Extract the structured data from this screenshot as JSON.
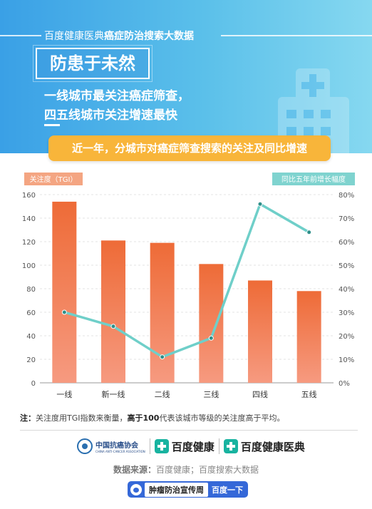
{
  "header": {
    "brand": "百度健康医典",
    "title_bold": "癌症防治搜索大数据",
    "slogan": "防患于未然",
    "headline_line1": "一线城市最关注癌症筛查，",
    "headline_line2": "四五线城市关注增速最快"
  },
  "chart_data": {
    "type": "bar",
    "title": "近一年，分城市对癌症筛查搜索的关注及同比增速",
    "categories": [
      "一线",
      "新一线",
      "二线",
      "三线",
      "四线",
      "五线"
    ],
    "series": [
      {
        "name": "关注度（TGI）",
        "type": "bar",
        "axis": "left",
        "values": [
          154,
          121,
          119,
          101,
          87,
          78
        ],
        "color": "#f07a48"
      },
      {
        "name": "同比五年前增长幅度",
        "type": "line",
        "axis": "right",
        "values": [
          30,
          24,
          11,
          19,
          76,
          64
        ],
        "color": "#6fcfc9"
      }
    ],
    "y_left": {
      "label": "关注度（TGI）",
      "min": 0,
      "max": 160,
      "ticks": [
        "0",
        "20",
        "40",
        "60",
        "80",
        "100",
        "120",
        "140",
        "160"
      ]
    },
    "y_right": {
      "label": "同比五年前增长幅度",
      "min": 0,
      "max": 80,
      "ticks": [
        "0%",
        "10%",
        "20%",
        "30%",
        "40%",
        "50%",
        "60%",
        "70%",
        "80%"
      ]
    },
    "grid": true
  },
  "note": {
    "prefix": "注：",
    "text1": "关注度用TGI指数来衡量，",
    "bold": "高于100",
    "text2": "代表该城市等级的关注度高于平均。"
  },
  "logos": {
    "cacs_cn": "中国抗癌协会",
    "cacs_en": "CHINA ANTI-CANCER ASSOCIATION",
    "brand1": "百度健康",
    "brand2": "百度健康医典"
  },
  "source": {
    "label": "数据来源：",
    "text": "百度健康；百度搜索大数据"
  },
  "bottom": {
    "event": "肿瘤防治宣传周",
    "tail": "百度一下"
  },
  "colors": {
    "bar_top": "#ee6b37",
    "bar_bottom": "#f69a80",
    "line": "#6fcfc9",
    "left_tag": "#f4a582",
    "right_tag": "#7fd3cf",
    "banner": "#3aa0e6",
    "pill": "#f8b53a"
  }
}
